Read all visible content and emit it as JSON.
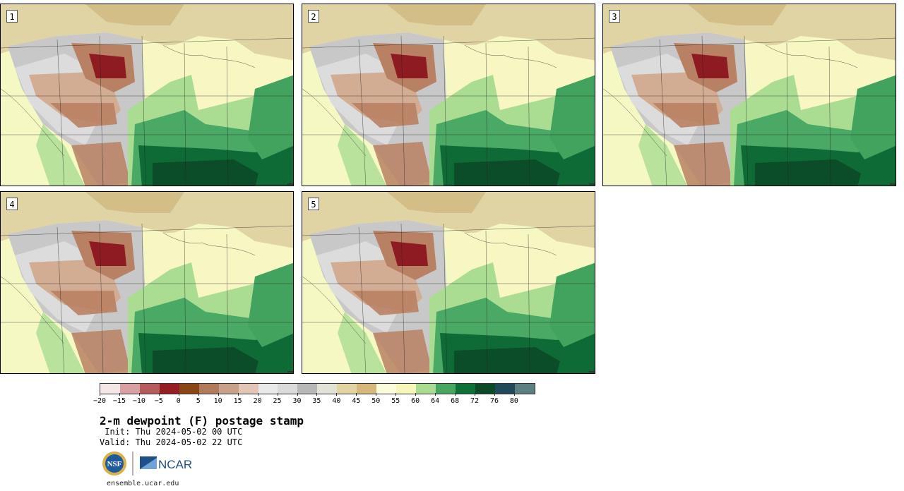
{
  "figure": {
    "title": "2-m dewpoint (F) postage stamp",
    "init": " Init: Thu 2024-05-02 00 UTC",
    "valid": "Valid: Thu 2024-05-02 22 UTC",
    "website": "ensemble.ucar.edu",
    "logos": {
      "nsf_text": "NSF",
      "ncar_text": "NCAR"
    }
  },
  "members": [
    {
      "label": "1"
    },
    {
      "label": "2"
    },
    {
      "label": "3"
    },
    {
      "label": "4"
    },
    {
      "label": "5"
    }
  ],
  "colorbar": {
    "colors": [
      "#f4e6e6",
      "#d8a0a0",
      "#b65c5c",
      "#951e22",
      "#8a4614",
      "#b07b5a",
      "#c9a088",
      "#e2c5b4",
      "#e9e9e9",
      "#dadada",
      "#b7b7b7",
      "#e2e2d6",
      "#e3d3a3",
      "#d8b77b",
      "#fbfcda",
      "#f6f7b9",
      "#a9db90",
      "#46a75e",
      "#0c7136",
      "#0a4a26",
      "#1e4a5a",
      "#5a8080"
    ],
    "tick_labels": [
      "−20",
      "−15",
      "−10",
      "−5",
      "0",
      "5",
      "10",
      "15",
      "20",
      "25",
      "30",
      "35",
      "40",
      "45",
      "50",
      "55",
      "60",
      "64",
      "68",
      "72",
      "76",
      "80"
    ]
  },
  "map_colors": {
    "ocean_west": "#f6f8c4",
    "canada": "#e0d3a4",
    "canada_dark": "#c9b077",
    "grey_west": "#c8c8c8",
    "light_grey": "#e4e4e4",
    "brown": "#b98163",
    "light_brown": "#d3ad93",
    "dark_red": "#8e1b21",
    "cream": "#f8f6c2",
    "light_green": "#aadc92",
    "green": "#4aa964",
    "dark_green": "#0f6b35",
    "gulf": "#0b4d28",
    "atlantic": "#41a35d"
  }
}
